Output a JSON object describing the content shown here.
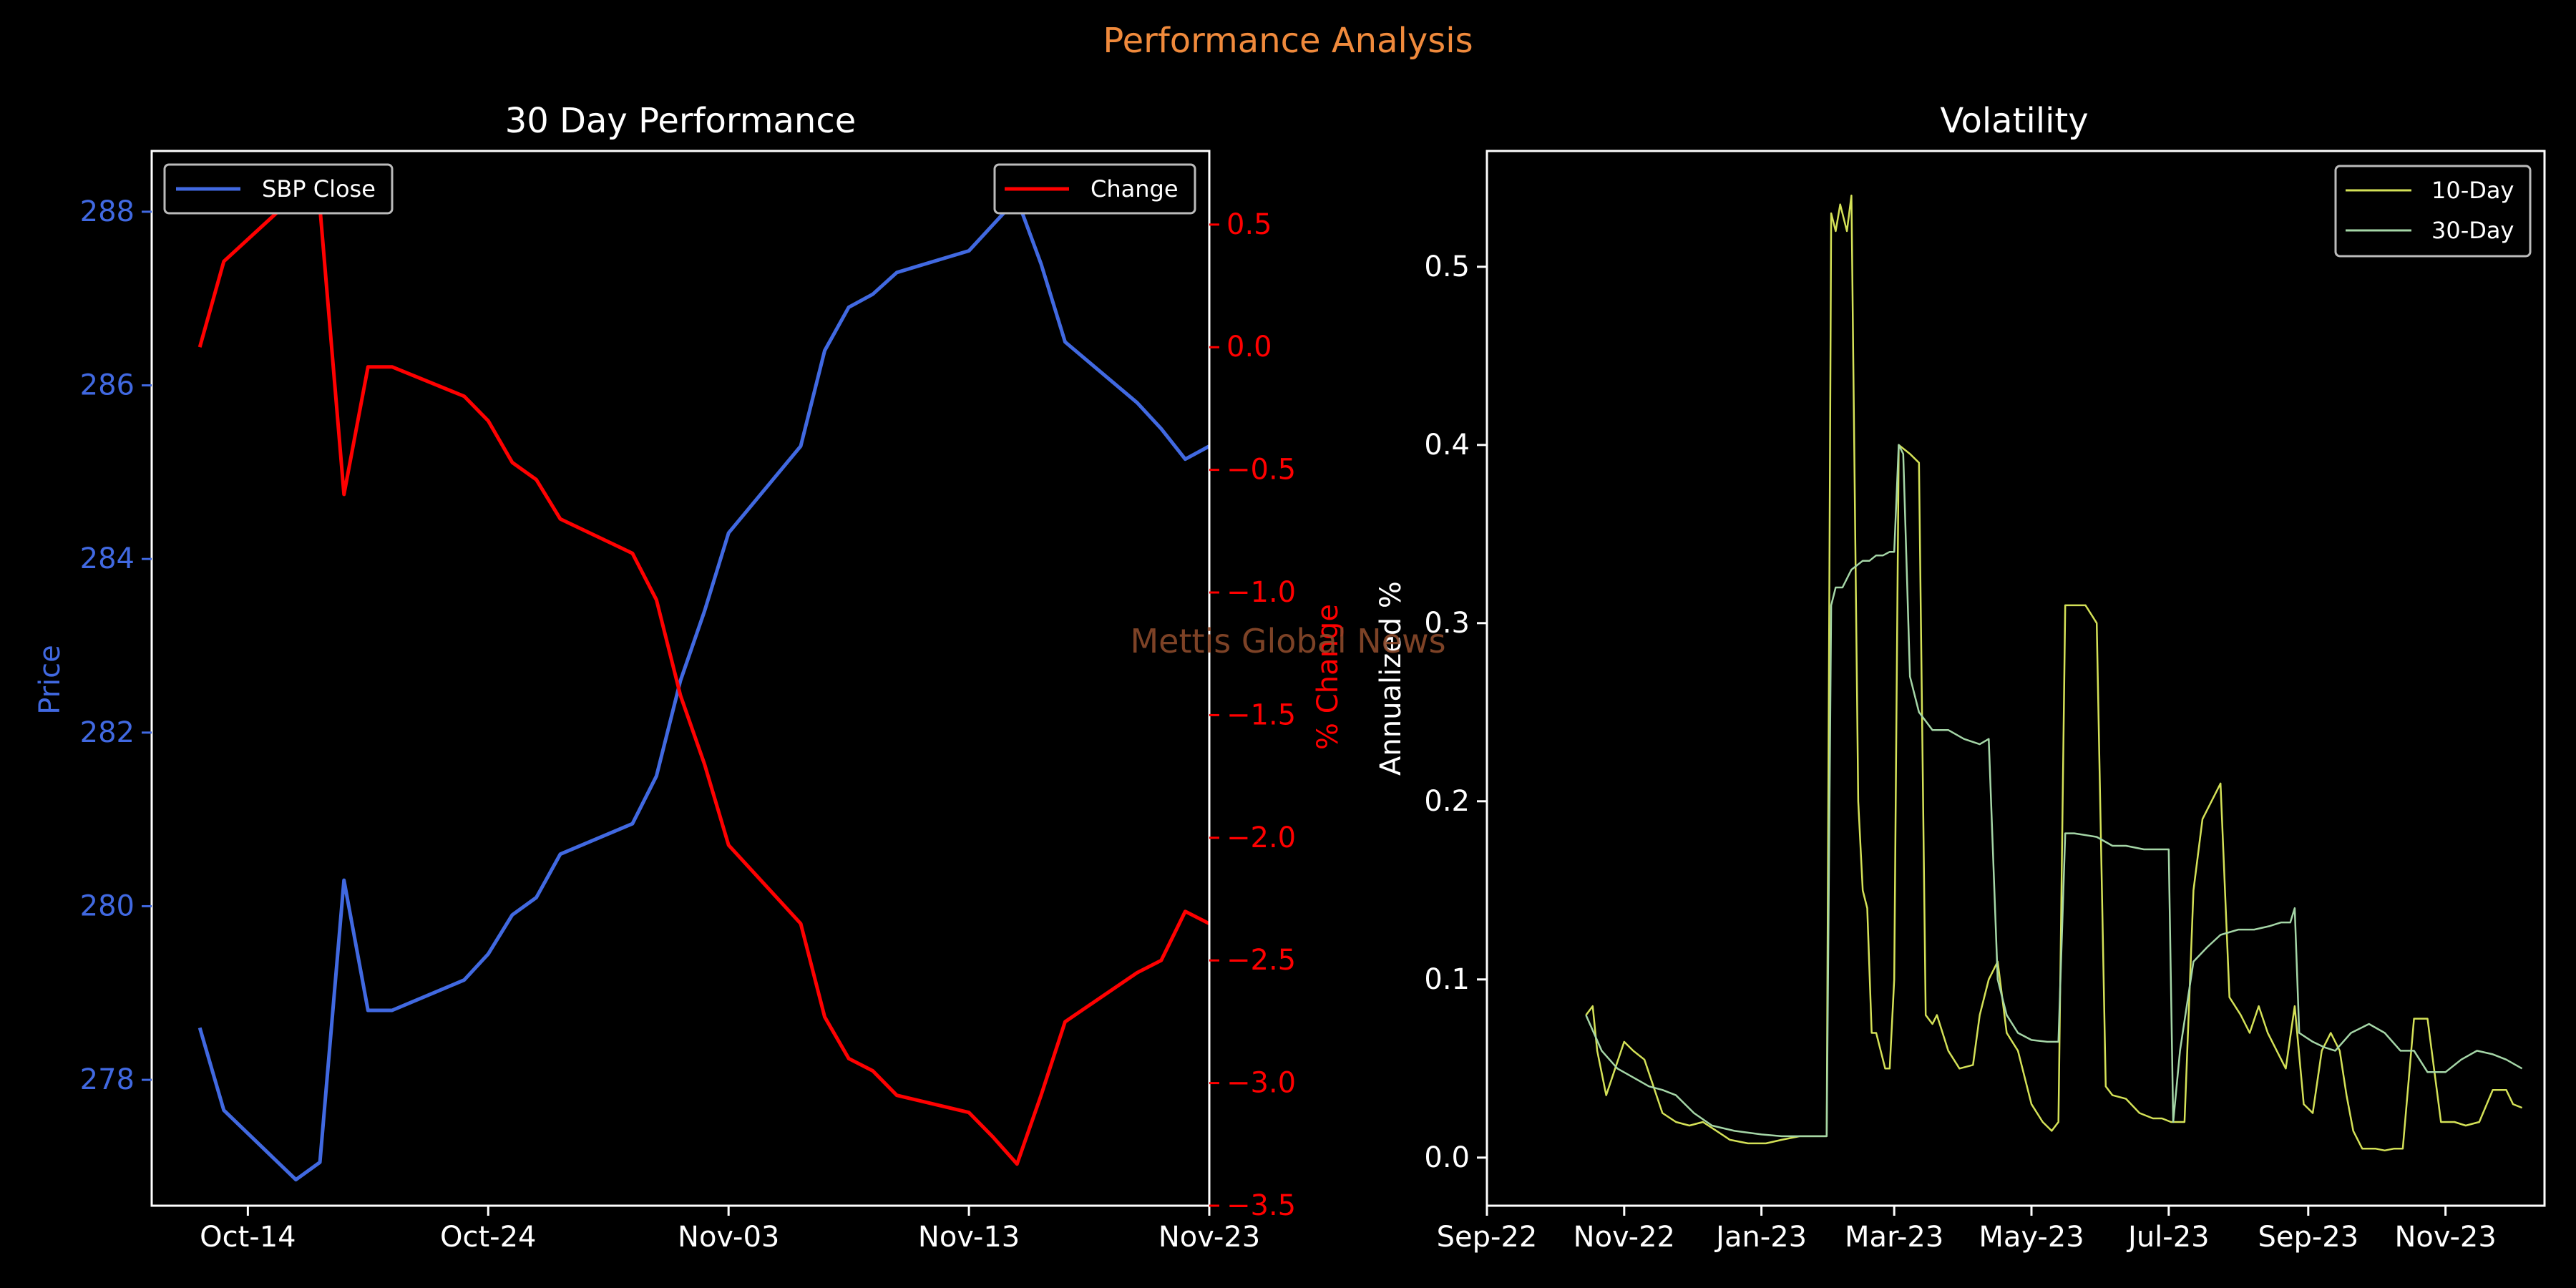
{
  "figure": {
    "suptitle": "Performance Analysis",
    "watermark": "Mettis Global News",
    "colors": {
      "background": "#000000",
      "suptitle": "#f08a3c",
      "axes": "#ffffff",
      "watermark": "#8b4a2b"
    }
  },
  "chart_data": [
    {
      "type": "line",
      "title": "30 Day Performance",
      "xlabel": "",
      "ylabel_left": "Price",
      "ylabel_right": "% Change",
      "x_ticks": [
        "Oct-14",
        "Oct-24",
        "Nov-03",
        "Nov-13",
        "Nov-23"
      ],
      "x_range": [
        "2023-10-10",
        "2023-11-23"
      ],
      "y_left_range": [
        276.55,
        288.7
      ],
      "y_left_ticks": [
        "278",
        "280",
        "282",
        "284",
        "286",
        "288"
      ],
      "y_right_range": [
        -3.5,
        0.8
      ],
      "y_right_ticks": [
        "0.5",
        "0.0",
        "−0.5",
        "−1.0",
        "−1.5",
        "−2.0",
        "−2.5",
        "−3.0",
        "−3.5"
      ],
      "colors": {
        "price": "#4169e1",
        "change": "#ff0000"
      },
      "series": [
        {
          "name": "SBP Close",
          "axis": "left",
          "x": [
            "2023-10-12",
            "2023-10-13",
            "2023-10-16",
            "2023-10-17",
            "2023-10-18",
            "2023-10-19",
            "2023-10-20",
            "2023-10-23",
            "2023-10-24",
            "2023-10-25",
            "2023-10-26",
            "2023-10-27",
            "2023-10-30",
            "2023-10-31",
            "2023-11-01",
            "2023-11-02",
            "2023-11-03",
            "2023-11-06",
            "2023-11-07",
            "2023-11-08",
            "2023-11-09",
            "2023-11-10",
            "2023-11-13",
            "2023-11-14",
            "2023-11-15",
            "2023-11-16",
            "2023-11-17",
            "2023-11-20",
            "2023-11-21",
            "2023-11-22",
            "2023-11-23"
          ],
          "values": [
            278.6,
            277.65,
            276.85,
            277.05,
            280.3,
            278.8,
            278.8,
            279.15,
            279.45,
            279.9,
            280.1,
            280.6,
            280.95,
            281.5,
            282.6,
            283.4,
            284.3,
            285.3,
            286.4,
            286.9,
            287.05,
            287.3,
            287.55,
            287.85,
            288.15,
            287.4,
            286.5,
            285.8,
            285.5,
            285.15,
            285.3
          ]
        },
        {
          "name": "Change",
          "axis": "right",
          "x": [
            "2023-10-12",
            "2023-10-13",
            "2023-10-16",
            "2023-10-17",
            "2023-10-18",
            "2023-10-19",
            "2023-10-20",
            "2023-10-23",
            "2023-10-24",
            "2023-10-25",
            "2023-10-26",
            "2023-10-27",
            "2023-10-30",
            "2023-10-31",
            "2023-11-01",
            "2023-11-02",
            "2023-11-03",
            "2023-11-06",
            "2023-11-07",
            "2023-11-08",
            "2023-11-09",
            "2023-11-10",
            "2023-11-13",
            "2023-11-14",
            "2023-11-15",
            "2023-11-16",
            "2023-11-17",
            "2023-11-20",
            "2023-11-21",
            "2023-11-22",
            "2023-11-23"
          ],
          "values": [
            0.0,
            0.35,
            0.62,
            0.57,
            -0.6,
            -0.08,
            -0.08,
            -0.2,
            -0.3,
            -0.47,
            -0.54,
            -0.7,
            -0.84,
            -1.03,
            -1.42,
            -1.7,
            -2.03,
            -2.35,
            -2.73,
            -2.9,
            -2.95,
            -3.05,
            -3.12,
            -3.22,
            -3.33,
            -3.05,
            -2.75,
            -2.55,
            -2.5,
            -2.3,
            -2.35
          ]
        }
      ],
      "legends": [
        {
          "label": "SBP Close",
          "position": "upper-left"
        },
        {
          "label": "Change",
          "position": "upper-right"
        }
      ]
    },
    {
      "type": "line",
      "title": "Volatility",
      "xlabel": "",
      "ylabel": "Annualized %",
      "x_ticks": [
        "Sep-22",
        "Nov-22",
        "Jan-23",
        "Mar-23",
        "May-23",
        "Jul-23",
        "Sep-23",
        "Nov-23"
      ],
      "x_range": [
        "2022-09-01",
        "2023-12-15"
      ],
      "ylim": [
        -0.027,
        0.565
      ],
      "y_ticks": [
        "0.0",
        "0.1",
        "0.2",
        "0.3",
        "0.4",
        "0.5"
      ],
      "legend": {
        "position": "upper-right"
      },
      "colors": {
        "vol10": "#d4e157",
        "vol30": "#a5d6a7"
      },
      "series": [
        {
          "name": "10-Day",
          "x": [
            "2022-10-15",
            "2022-10-18",
            "2022-10-20",
            "2022-10-24",
            "2022-10-28",
            "2022-11-01",
            "2022-11-05",
            "2022-11-10",
            "2022-11-14",
            "2022-11-18",
            "2022-11-24",
            "2022-11-30",
            "2022-12-06",
            "2022-12-12",
            "2022-12-18",
            "2022-12-26",
            "2023-01-03",
            "2023-01-10",
            "2023-01-18",
            "2023-01-24",
            "2023-01-30",
            "2023-02-01",
            "2023-02-03",
            "2023-02-05",
            "2023-02-08",
            "2023-02-10",
            "2023-02-13",
            "2023-02-15",
            "2023-02-17",
            "2023-02-19",
            "2023-02-21",
            "2023-02-23",
            "2023-02-25",
            "2023-02-27",
            "2023-03-01",
            "2023-03-03",
            "2023-03-08",
            "2023-03-12",
            "2023-03-15",
            "2023-03-18",
            "2023-03-20",
            "2023-03-25",
            "2023-03-30",
            "2023-04-05",
            "2023-04-08",
            "2023-04-12",
            "2023-04-16",
            "2023-04-20",
            "2023-04-25",
            "2023-05-01",
            "2023-05-06",
            "2023-05-10",
            "2023-05-13",
            "2023-05-16",
            "2023-05-20",
            "2023-05-25",
            "2023-05-30",
            "2023-06-03",
            "2023-06-06",
            "2023-06-12",
            "2023-06-18",
            "2023-06-24",
            "2023-06-28",
            "2023-07-02",
            "2023-07-08",
            "2023-07-12",
            "2023-07-16",
            "2023-07-20",
            "2023-07-24",
            "2023-07-28",
            "2023-08-02",
            "2023-08-06",
            "2023-08-10",
            "2023-08-14",
            "2023-08-18",
            "2023-08-22",
            "2023-08-26",
            "2023-08-30",
            "2023-09-03",
            "2023-09-07",
            "2023-09-11",
            "2023-09-15",
            "2023-09-18",
            "2023-09-21",
            "2023-09-25",
            "2023-10-01",
            "2023-10-05",
            "2023-10-09",
            "2023-10-13",
            "2023-10-18",
            "2023-10-24",
            "2023-10-30",
            "2023-11-05",
            "2023-11-10",
            "2023-11-16",
            "2023-11-22",
            "2023-11-28",
            "2023-12-01",
            "2023-12-05"
          ],
          "values": [
            0.08,
            0.085,
            0.06,
            0.035,
            0.05,
            0.065,
            0.06,
            0.055,
            0.04,
            0.025,
            0.02,
            0.018,
            0.02,
            0.015,
            0.01,
            0.008,
            0.008,
            0.01,
            0.012,
            0.012,
            0.012,
            0.53,
            0.52,
            0.535,
            0.52,
            0.54,
            0.2,
            0.15,
            0.14,
            0.07,
            0.07,
            0.06,
            0.05,
            0.05,
            0.1,
            0.4,
            0.395,
            0.39,
            0.08,
            0.075,
            0.08,
            0.06,
            0.05,
            0.052,
            0.08,
            0.1,
            0.11,
            0.07,
            0.06,
            0.03,
            0.02,
            0.015,
            0.02,
            0.31,
            0.31,
            0.31,
            0.3,
            0.04,
            0.035,
            0.033,
            0.025,
            0.022,
            0.022,
            0.02,
            0.02,
            0.15,
            0.19,
            0.2,
            0.21,
            0.09,
            0.08,
            0.07,
            0.085,
            0.07,
            0.06,
            0.05,
            0.085,
            0.03,
            0.025,
            0.06,
            0.07,
            0.06,
            0.035,
            0.015,
            0.005,
            0.005,
            0.004,
            0.005,
            0.005,
            0.078,
            0.078,
            0.02,
            0.02,
            0.018,
            0.02,
            0.038,
            0.038,
            0.03,
            0.028
          ]
        },
        {
          "name": "30-Day",
          "x": [
            "2022-10-15",
            "2022-10-22",
            "2022-10-29",
            "2022-11-05",
            "2022-11-12",
            "2022-11-18",
            "2022-11-24",
            "2022-12-02",
            "2022-12-10",
            "2022-12-20",
            "2023-01-01",
            "2023-01-10",
            "2023-01-20",
            "2023-01-30",
            "2023-02-01",
            "2023-02-03",
            "2023-02-06",
            "2023-02-10",
            "2023-02-15",
            "2023-02-18",
            "2023-02-21",
            "2023-02-24",
            "2023-02-27",
            "2023-03-01",
            "2023-03-03",
            "2023-03-05",
            "2023-03-08",
            "2023-03-12",
            "2023-03-18",
            "2023-03-25",
            "2023-04-01",
            "2023-04-08",
            "2023-04-12",
            "2023-04-16",
            "2023-04-20",
            "2023-04-25",
            "2023-05-01",
            "2023-05-08",
            "2023-05-13",
            "2023-05-16",
            "2023-05-20",
            "2023-05-30",
            "2023-06-06",
            "2023-06-12",
            "2023-06-20",
            "2023-06-27",
            "2023-07-01",
            "2023-07-03",
            "2023-07-06",
            "2023-07-12",
            "2023-07-18",
            "2023-07-24",
            "2023-08-01",
            "2023-08-08",
            "2023-08-15",
            "2023-08-20",
            "2023-08-24",
            "2023-08-26",
            "2023-08-28",
            "2023-09-03",
            "2023-09-08",
            "2023-09-13",
            "2023-09-20",
            "2023-09-28",
            "2023-10-05",
            "2023-10-12",
            "2023-10-18",
            "2023-10-24",
            "2023-11-01",
            "2023-11-08",
            "2023-11-15",
            "2023-11-22",
            "2023-11-28",
            "2023-12-05"
          ],
          "values": [
            0.08,
            0.06,
            0.05,
            0.045,
            0.04,
            0.038,
            0.035,
            0.025,
            0.018,
            0.015,
            0.013,
            0.012,
            0.012,
            0.012,
            0.31,
            0.32,
            0.32,
            0.33,
            0.335,
            0.335,
            0.338,
            0.338,
            0.34,
            0.34,
            0.4,
            0.395,
            0.27,
            0.25,
            0.24,
            0.24,
            0.235,
            0.232,
            0.235,
            0.1,
            0.08,
            0.07,
            0.066,
            0.065,
            0.065,
            0.182,
            0.182,
            0.18,
            0.175,
            0.175,
            0.173,
            0.173,
            0.173,
            0.02,
            0.06,
            0.11,
            0.118,
            0.125,
            0.128,
            0.128,
            0.13,
            0.132,
            0.132,
            0.14,
            0.07,
            0.065,
            0.062,
            0.06,
            0.07,
            0.075,
            0.07,
            0.06,
            0.06,
            0.048,
            0.048,
            0.055,
            0.06,
            0.058,
            0.055,
            0.05
          ]
        }
      ]
    }
  ]
}
